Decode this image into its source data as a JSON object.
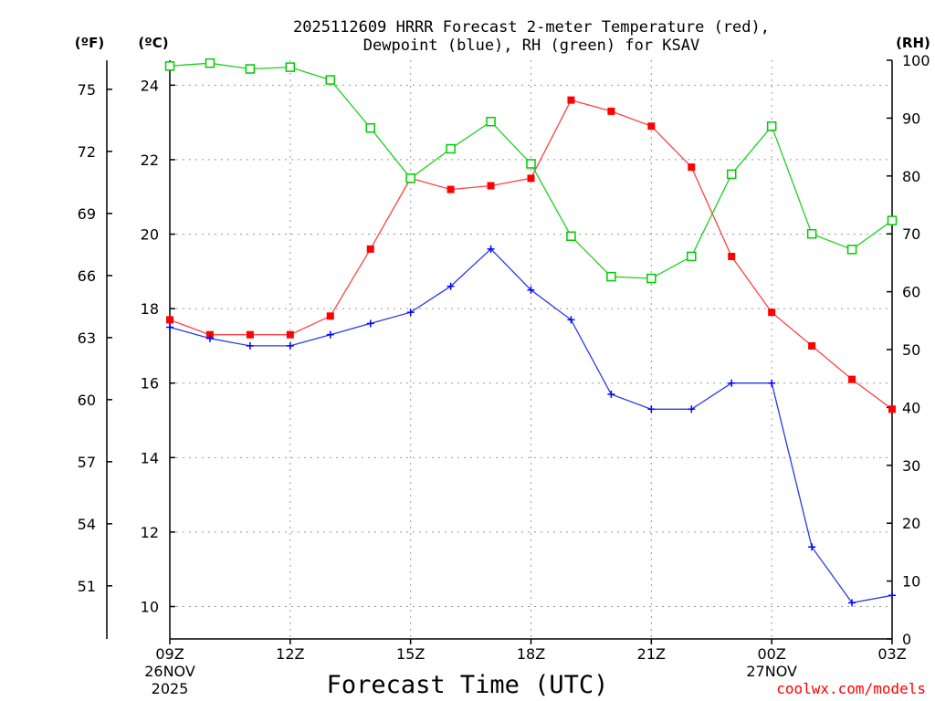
{
  "chart_data": {
    "type": "line",
    "title_line1": "2025112609 HRRR Forecast 2-meter Temperature (red),",
    "title_line2": "Dewpoint (blue), RH (green) for KSAV",
    "xlabel": "Forecast Time (UTC)",
    "unit_f": "(ºF)",
    "unit_c": "(ºC)",
    "unit_rh": "(RH)",
    "credit": "coolwx.com/models",
    "x_ticks": [
      {
        "hour": 0,
        "label": "09Z",
        "date1": "26NOV",
        "date2": "2025"
      },
      {
        "hour": 3,
        "label": "12Z",
        "date1": "",
        "date2": ""
      },
      {
        "hour": 6,
        "label": "15Z",
        "date1": "",
        "date2": ""
      },
      {
        "hour": 9,
        "label": "18Z",
        "date1": "",
        "date2": ""
      },
      {
        "hour": 12,
        "label": "21Z",
        "date1": "",
        "date2": ""
      },
      {
        "hour": 15,
        "label": "00Z",
        "date1": "27NOV",
        "date2": ""
      },
      {
        "hour": 18,
        "label": "03Z",
        "date1": "",
        "date2": ""
      }
    ],
    "xlim": [
      0,
      18
    ],
    "ylim_c": [
      9.13,
      24.67
    ],
    "ylim_rh": [
      0,
      100
    ],
    "y_ticks_c": [
      10,
      12,
      14,
      16,
      18,
      20,
      22,
      24
    ],
    "y_ticks_f": [
      51,
      54,
      57,
      60,
      63,
      66,
      69,
      72,
      75
    ],
    "y_ticks_rh": [
      0,
      10,
      20,
      30,
      40,
      50,
      60,
      70,
      80,
      90,
      100
    ],
    "series": [
      {
        "name": "Temperature",
        "color": "#ff0000",
        "line_color": "#ff4040",
        "marker": "filled-square",
        "axis": "c",
        "x": [
          0,
          1,
          2,
          3,
          4,
          5,
          6,
          7,
          8,
          9,
          10,
          11,
          12,
          13,
          14,
          15,
          16,
          17,
          18
        ],
        "values": [
          17.7,
          17.3,
          17.3,
          17.3,
          17.8,
          19.6,
          21.5,
          21.2,
          21.3,
          21.5,
          23.6,
          23.3,
          22.9,
          21.8,
          19.4,
          17.9,
          17.0,
          16.1,
          15.3
        ]
      },
      {
        "name": "Dewpoint",
        "color": "#0000ff",
        "line_color": "#2a3be8",
        "marker": "plus",
        "axis": "c",
        "x": [
          0,
          1,
          2,
          3,
          4,
          5,
          6,
          7,
          8,
          9,
          10,
          11,
          12,
          13,
          14,
          15,
          16,
          17,
          18
        ],
        "values": [
          17.5,
          17.2,
          17.0,
          17.0,
          17.3,
          17.6,
          17.9,
          18.6,
          19.6,
          18.5,
          17.7,
          15.7,
          15.3,
          15.3,
          16.0,
          16.0,
          11.6,
          10.1,
          10.3
        ]
      },
      {
        "name": "RH",
        "color": "#00cc00",
        "line_color": "#20d020",
        "marker": "open-square",
        "axis": "rh",
        "x": [
          0,
          1,
          2,
          3,
          4,
          5,
          6,
          7,
          8,
          9,
          10,
          11,
          12,
          13,
          14,
          15,
          16,
          17,
          18
        ],
        "values": [
          99,
          99.5,
          98.5,
          98.8,
          96.6,
          88.3,
          79.6,
          84.7,
          89.4,
          82.1,
          69.6,
          62.6,
          62.3,
          66.1,
          80.3,
          88.6,
          70.0,
          67.3,
          72.3
        ]
      }
    ]
  }
}
